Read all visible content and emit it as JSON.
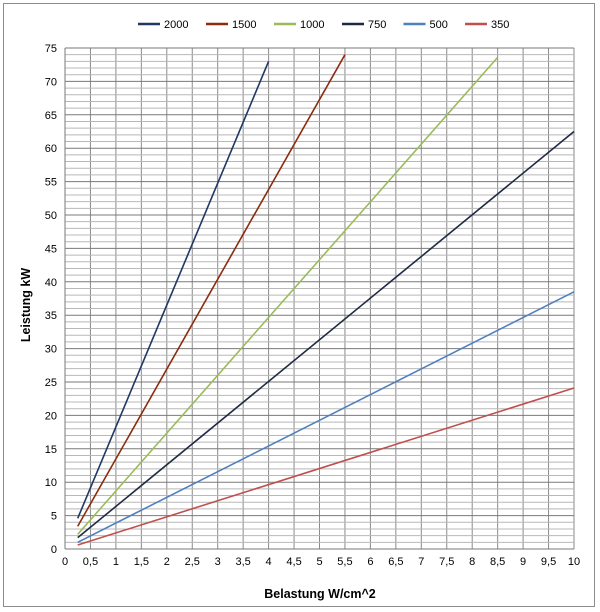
{
  "chart_data": {
    "type": "line",
    "xlabel": "Belastung W/cm^2",
    "ylabel": "Leistung kW",
    "xlim": [
      0,
      10
    ],
    "ylim": [
      0,
      75
    ],
    "x_ticks": [
      "0",
      "0,5",
      "1",
      "1,5",
      "2",
      "2,5",
      "3",
      "3,5",
      "4",
      "4,5",
      "5",
      "5,5",
      "6",
      "6,5",
      "7",
      "7,5",
      "8",
      "8,5",
      "9",
      "9,5",
      "10"
    ],
    "y_ticks": [
      "0",
      "5",
      "10",
      "15",
      "20",
      "25",
      "30",
      "35",
      "40",
      "45",
      "50",
      "55",
      "60",
      "65",
      "70",
      "75"
    ],
    "grid": true,
    "legend_position": "top",
    "series": [
      {
        "name": "2000",
        "color": "#1f3864",
        "x": [
          0.25,
          4
        ],
        "y": [
          4.6,
          73
        ]
      },
      {
        "name": "1500",
        "color": "#8b2c0e",
        "x": [
          0.25,
          5.5
        ],
        "y": [
          3.4,
          74
        ]
      },
      {
        "name": "1000",
        "color": "#9bbb59",
        "x": [
          0.25,
          8.5
        ],
        "y": [
          2.2,
          73.6
        ]
      },
      {
        "name": "750",
        "color": "#1f2a44",
        "x": [
          0.25,
          10
        ],
        "y": [
          1.7,
          62.5
        ]
      },
      {
        "name": "500",
        "color": "#4f81bd",
        "x": [
          0.25,
          10
        ],
        "y": [
          1.0,
          38.5
        ]
      },
      {
        "name": "350",
        "color": "#c0504d",
        "x": [
          0.25,
          10
        ],
        "y": [
          0.6,
          24.1
        ]
      }
    ]
  }
}
